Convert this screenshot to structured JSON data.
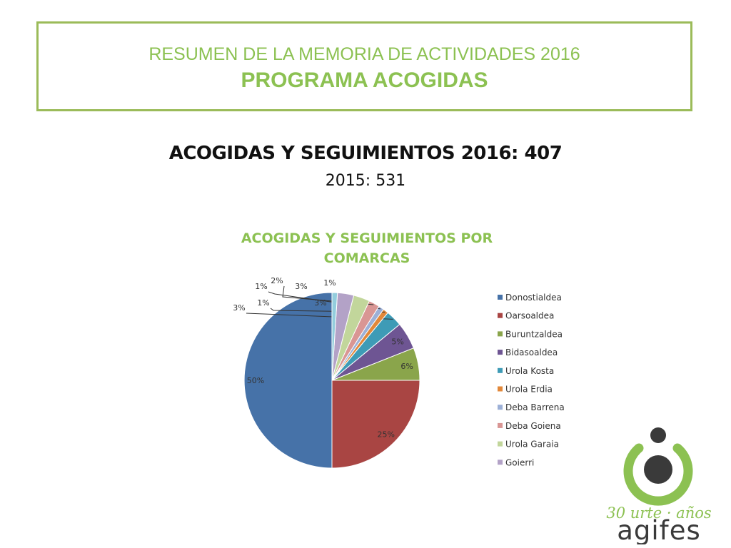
{
  "header": {
    "line1": "RESUMEN DE LA MEMORIA DE ACTIVIDADES 2016",
    "line2": "PROGRAMA ACOGIDAS"
  },
  "summary": {
    "title": "ACOGIDAS Y SEGUIMIENTOS 2016: 407",
    "subtitle": "2015: 531"
  },
  "chart_data": {
    "type": "pie",
    "title": "ACOGIDAS Y SEGUIMIENTOS POR COMARCAS",
    "title_lines": [
      "ACOGIDAS Y SEGUIMIENTOS POR",
      "COMARCAS"
    ],
    "legend_position": "right",
    "categories": [
      "Donostialdea",
      "Oarsoaldea",
      "Buruntzaldea",
      "Bidasoaldea",
      "Urola Kosta",
      "Urola Erdia",
      "Deba Barrena",
      "Deba Goiena",
      "Urola Garaia",
      "Goierri",
      ""
    ],
    "values": [
      50,
      25,
      6,
      5,
      3,
      1,
      1,
      2,
      3,
      3,
      1
    ],
    "labels": [
      "50%",
      "25%",
      "6%",
      "5%",
      "3%",
      "1%",
      "1%",
      "2%",
      "3%",
      "3%",
      "1%"
    ],
    "colors": [
      "#4672a8",
      "#a94543",
      "#8aa54b",
      "#6e5593",
      "#3e9bb6",
      "#e2883a",
      "#9cb0d7",
      "#d99694",
      "#c2d69b",
      "#b3a2c7",
      "#93cddd"
    ]
  },
  "logo": {
    "tagline": "30 urte · años",
    "name": "agifes",
    "colors": {
      "green": "#8cc152",
      "dark": "#3a3a3a"
    }
  }
}
